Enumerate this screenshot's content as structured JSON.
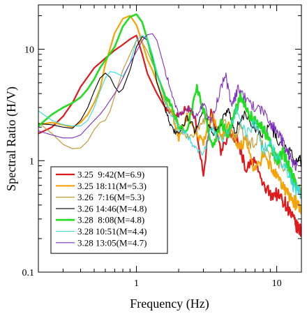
{
  "chart_data": {
    "type": "line",
    "xlabel": "Frequency (Hz)",
    "ylabel": "Spectral Ratio (H/V)",
    "xscale": "log",
    "yscale": "log",
    "xlim": [
      0.2,
      15
    ],
    "ylim": [
      0.1,
      25
    ],
    "x_ticks": [
      {
        "v": 1,
        "label": "1"
      },
      {
        "v": 10,
        "label": "10"
      }
    ],
    "y_ticks": [
      {
        "v": 0.1,
        "label": "0.1"
      },
      {
        "v": 1,
        "label": "1"
      },
      {
        "v": 10,
        "label": "10"
      }
    ],
    "grid": false,
    "legend_position": "lower-left",
    "series": [
      {
        "name": "3.25  9:42(M=6.9)",
        "color": "#e0191d",
        "width": 2.2,
        "x": [
          0.2,
          0.25,
          0.3,
          0.35,
          0.4,
          0.5,
          0.6,
          0.7,
          0.8,
          0.9,
          1.0,
          1.1,
          1.2,
          1.4,
          1.6,
          1.8,
          2.0,
          2.3,
          2.6,
          3.0,
          3.4,
          4.0,
          4.6,
          5.3,
          6.0,
          7.0,
          8.0,
          9.0,
          10.0,
          11.0,
          12.0,
          13.0,
          14.0,
          15.0
        ],
        "y": [
          1.75,
          2.0,
          2.5,
          3.3,
          4.6,
          6.8,
          8.3,
          9.8,
          11.0,
          12.3,
          13.3,
          9.0,
          6.0,
          4.0,
          3.0,
          2.6,
          2.6,
          3.0,
          2.5,
          0.75,
          2.7,
          1.2,
          1.8,
          1.5,
          0.85,
          1.0,
          0.6,
          0.5,
          0.5,
          0.45,
          0.38,
          0.3,
          0.25,
          0.23
        ]
      },
      {
        "name": "3.25 18:11(M=5.3)",
        "color": "#f4a30a",
        "width": 2.2,
        "x": [
          0.2,
          0.25,
          0.3,
          0.35,
          0.4,
          0.45,
          0.5,
          0.55,
          0.6,
          0.7,
          0.8,
          0.9,
          1.0,
          1.1,
          1.2,
          1.3,
          1.5,
          1.8,
          2.0,
          2.3,
          2.6,
          3.0,
          3.5,
          4.0,
          4.6,
          5.2,
          6.0,
          7.0,
          8.0,
          9.0,
          10.0,
          11.0,
          12.0,
          13.0,
          14.0,
          15.0
        ],
        "y": [
          2.1,
          2.2,
          2.1,
          2.0,
          2.2,
          2.6,
          3.3,
          4.4,
          7.3,
          14.0,
          18.8,
          20.0,
          16.5,
          11.5,
          8.0,
          6.5,
          4.0,
          2.6,
          1.6,
          2.5,
          1.8,
          1.5,
          2.5,
          1.6,
          2.1,
          1.3,
          1.5,
          0.8,
          1.1,
          0.9,
          0.7,
          0.6,
          0.5,
          0.45,
          0.4,
          0.38
        ]
      },
      {
        "name": "3.26  7:16(M=5.3)",
        "color": "#c39c3a",
        "width": 1.2,
        "x": [
          0.2,
          0.25,
          0.3,
          0.35,
          0.4,
          0.45,
          0.5,
          0.55,
          0.6,
          0.65,
          0.7,
          0.8,
          0.9,
          1.0,
          1.1,
          1.2,
          1.4,
          1.6,
          1.8,
          2.0,
          2.4,
          2.8,
          3.2,
          3.7,
          4.2,
          4.8,
          5.5,
          6.5,
          7.5,
          8.5,
          10.0,
          12.0,
          14.0,
          15.0
        ],
        "y": [
          2.2,
          1.75,
          1.4,
          1.28,
          1.3,
          1.5,
          1.9,
          2.2,
          2.3,
          2.8,
          3.8,
          6.5,
          9.0,
          12.0,
          11.5,
          9.5,
          6.0,
          4.0,
          2.9,
          2.0,
          1.6,
          2.0,
          2.5,
          1.9,
          2.3,
          1.6,
          1.9,
          1.4,
          1.6,
          1.2,
          1.0,
          0.8,
          0.6,
          0.5
        ]
      },
      {
        "name": "3.26 14:46(M=4.8)",
        "color": "#000000",
        "width": 1.1,
        "x": [
          0.2,
          0.25,
          0.3,
          0.35,
          0.4,
          0.45,
          0.5,
          0.55,
          0.6,
          0.65,
          0.7,
          0.75,
          0.8,
          0.9,
          1.0,
          1.1,
          1.2,
          1.3,
          1.4,
          1.6,
          1.8,
          2.0,
          2.3,
          2.6,
          3.0,
          3.5,
          4.0,
          4.5,
          5.0,
          6.0,
          7.0,
          8.0,
          9.0,
          10.0,
          12.0,
          14.0,
          15.0
        ],
        "y": [
          2.15,
          2.1,
          2.0,
          1.95,
          2.3,
          3.0,
          4.2,
          5.5,
          6.1,
          5.6,
          4.6,
          4.1,
          4.4,
          6.5,
          10.5,
          13.0,
          12.0,
          9.0,
          5.0,
          3.0,
          1.9,
          1.7,
          2.5,
          1.9,
          2.8,
          1.7,
          2.2,
          3.0,
          1.8,
          2.6,
          2.0,
          1.7,
          2.1,
          1.6,
          1.2,
          1.0,
          0.95
        ]
      },
      {
        "name": "3.28  8:08(M=4.8)",
        "color": "#22dd22",
        "width": 2.6,
        "x": [
          0.2,
          0.25,
          0.3,
          0.35,
          0.4,
          0.45,
          0.5,
          0.55,
          0.6,
          0.7,
          0.8,
          0.9,
          1.0,
          1.1,
          1.2,
          1.3,
          1.4,
          1.6,
          1.8,
          2.0,
          2.3,
          2.7,
          3.0,
          3.5,
          4.0,
          4.5,
          5.0,
          5.5,
          6.0,
          7.0,
          8.0,
          9.0,
          10.0,
          11.0,
          12.0,
          13.0,
          14.0
        ],
        "y": [
          2.05,
          2.6,
          3.0,
          3.3,
          3.7,
          4.4,
          5.4,
          6.8,
          8.0,
          10.5,
          16.0,
          19.5,
          20.6,
          17.5,
          12.0,
          8.0,
          6.0,
          3.8,
          3.0,
          2.0,
          1.9,
          4.5,
          2.9,
          1.3,
          2.2,
          1.7,
          2.6,
          3.7,
          3.0,
          2.2,
          1.9,
          1.5,
          1.0,
          1.2,
          0.9,
          0.7,
          0.6
        ]
      },
      {
        "name": "3.28 10:51(M=4.4)",
        "color": "#33dddd",
        "width": 1.1,
        "x": [
          0.2,
          0.25,
          0.3,
          0.35,
          0.4,
          0.45,
          0.5,
          0.55,
          0.6,
          0.65,
          0.7,
          0.8,
          0.9,
          1.0,
          1.1,
          1.2,
          1.3,
          1.5,
          1.7,
          2.0,
          2.3,
          2.6,
          3.0,
          3.4,
          4.0,
          4.6,
          5.2,
          6.0,
          7.0,
          8.0,
          9.0,
          10.0,
          11.0,
          12.0,
          13.0,
          14.0,
          15.0
        ],
        "y": [
          2.8,
          2.3,
          2.1,
          2.05,
          2.05,
          2.3,
          3.0,
          4.2,
          5.5,
          6.3,
          6.2,
          5.7,
          7.5,
          12.0,
          13.3,
          12.5,
          9.0,
          4.5,
          2.8,
          1.9,
          1.7,
          1.3,
          1.1,
          2.0,
          1.5,
          1.9,
          2.8,
          1.7,
          2.2,
          1.2,
          1.5,
          1.1,
          0.9,
          0.8,
          0.6,
          0.55,
          0.5
        ]
      },
      {
        "name": "3.28 13:05(M=4.7)",
        "color": "#8030c0",
        "width": 1.1,
        "x": [
          0.2,
          0.25,
          0.3,
          0.35,
          0.4,
          0.45,
          0.5,
          0.55,
          0.6,
          0.7,
          0.8,
          0.9,
          1.0,
          1.1,
          1.2,
          1.3,
          1.4,
          1.6,
          1.8,
          2.0,
          2.3,
          2.6,
          3.0,
          3.4,
          3.8,
          4.3,
          4.8,
          5.3,
          6.0,
          7.0,
          8.0,
          9.0,
          10.0,
          11.0,
          12.0,
          13.0,
          14.0
        ],
        "y": [
          1.85,
          1.7,
          1.6,
          1.6,
          1.7,
          2.0,
          2.3,
          2.6,
          3.0,
          4.0,
          5.5,
          7.5,
          9.5,
          12.0,
          13.5,
          13.8,
          12.0,
          6.5,
          3.8,
          2.6,
          3.0,
          2.5,
          3.2,
          2.2,
          3.6,
          6.0,
          3.0,
          4.5,
          3.6,
          3.0,
          2.8,
          2.2,
          1.8,
          1.5,
          1.2,
          1.0,
          0.9
        ]
      }
    ]
  }
}
